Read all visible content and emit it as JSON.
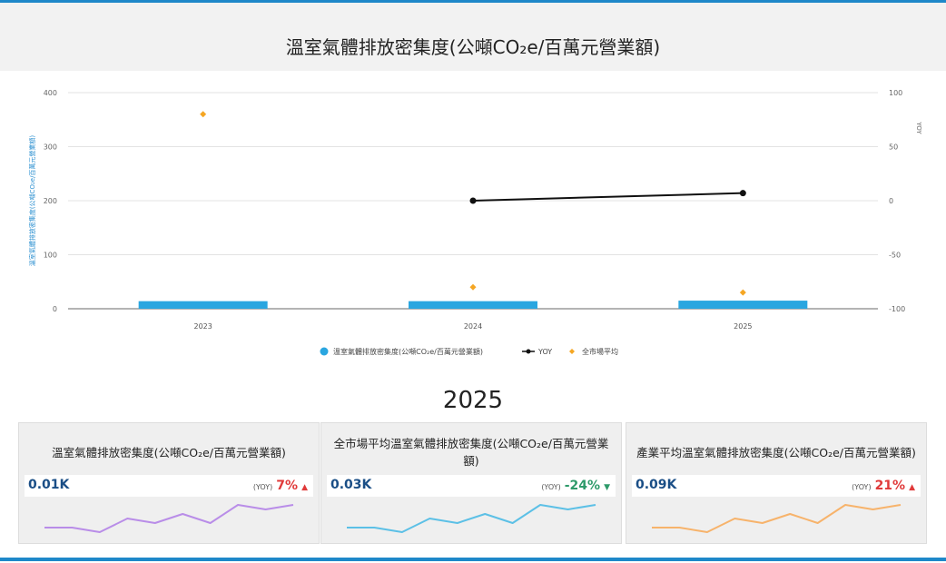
{
  "page": {
    "title": "溫室氣體排放密集度(公噸CO₂e/百萬元營業額)",
    "year_heading": "2025",
    "colors": {
      "accent_bar": "#1e88c9",
      "bar": "#2aa6e0",
      "line": "#111111",
      "market_avg": "#f5a623",
      "up": "#e03a3a",
      "down": "#2e9a6a"
    }
  },
  "chart_data": {
    "type": "bar",
    "categories": [
      "2023",
      "2024",
      "2025"
    ],
    "series": [
      {
        "name": "溫室氣體排放密集度(公噸CO₂e/百萬元營業額)",
        "type": "bar",
        "axis": "left",
        "values": [
          14,
          14,
          15
        ]
      },
      {
        "name": "YOY",
        "type": "line",
        "axis": "right",
        "values": [
          null,
          0,
          7
        ]
      },
      {
        "name": "全市場平均",
        "type": "scatter",
        "axis": "left",
        "values": [
          360,
          40,
          30
        ]
      }
    ],
    "ylabel": "溫室氣體排放密集度(公噸CO₂e/百萬元營業額)",
    "y2label": "YOY",
    "ylim": [
      0,
      400
    ],
    "y2lim": [
      -100,
      100
    ],
    "yticks": [
      "0",
      "100",
      "200",
      "300",
      "400"
    ],
    "y2ticks": [
      "-100",
      "-50",
      "0",
      "50",
      "100"
    ],
    "grid": true,
    "legend": "bottom"
  },
  "cards": [
    {
      "title": "溫室氣體排放密集度(公噸CO₂e/百萬元營業額)",
      "value": "0.01K",
      "yoy_label": "(YOY)",
      "yoy": "7%",
      "arrow": "▲",
      "trend": "up",
      "spark_color": "#b98de8",
      "spark": [
        3,
        3,
        2,
        5,
        4,
        6,
        4,
        8,
        7,
        8
      ]
    },
    {
      "title": "全市場平均溫室氣體排放密集度(公噸CO₂e/百萬元營業額)",
      "value": "0.03K",
      "yoy_label": "(YOY)",
      "yoy": "-24%",
      "arrow": "▼",
      "trend": "down",
      "spark_color": "#5cc0e6",
      "spark": [
        3,
        3,
        2,
        5,
        4,
        6,
        4,
        8,
        7,
        8
      ]
    },
    {
      "title": "產業平均溫室氣體排放密集度(公噸CO₂e/百萬元營業額)",
      "value": "0.09K",
      "yoy_label": "(YOY)",
      "yoy": "21%",
      "arrow": "▲",
      "trend": "up",
      "spark_color": "#f7b36b",
      "spark": [
        3,
        3,
        2,
        5,
        4,
        6,
        4,
        8,
        7,
        8
      ]
    }
  ]
}
